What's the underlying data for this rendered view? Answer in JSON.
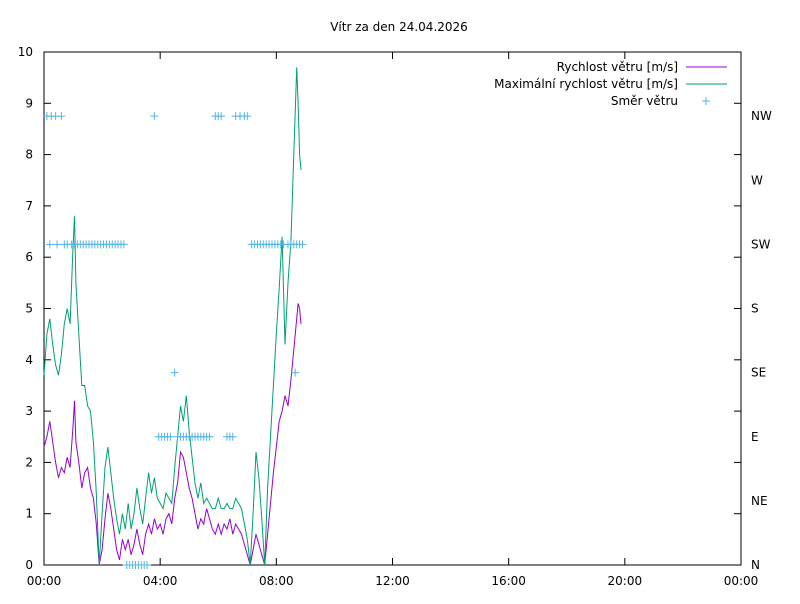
{
  "chart_data": {
    "type": "line",
    "title": "Vítr za den 24.04.2026",
    "x_ticks": [
      "00:00",
      "04:00",
      "08:00",
      "12:00",
      "16:00",
      "20:00",
      "00:00"
    ],
    "x_range_hours": [
      0,
      24
    ],
    "y_left": {
      "range": [
        0,
        10
      ],
      "ticks": [
        "0",
        "1",
        "2",
        "3",
        "4",
        "5",
        "6",
        "7",
        "8",
        "9",
        "10"
      ]
    },
    "y_right": {
      "labels": [
        "N",
        "NE",
        "E",
        "SE",
        "S",
        "SW",
        "W",
        "NW"
      ]
    },
    "grid": false,
    "legend_position": "top-right",
    "colors": {
      "speed": "#9400d3",
      "max_speed": "#009e73",
      "direction": "#56b4e9"
    },
    "series": [
      {
        "key": "speed",
        "name": "Rychlost větru [m/s]",
        "points": [
          [
            0.0,
            2.3
          ],
          [
            0.1,
            2.5
          ],
          [
            0.2,
            2.8
          ],
          [
            0.3,
            2.4
          ],
          [
            0.4,
            2.0
          ],
          [
            0.5,
            1.7
          ],
          [
            0.6,
            1.9
          ],
          [
            0.7,
            1.8
          ],
          [
            0.8,
            2.1
          ],
          [
            0.9,
            1.9
          ],
          [
            1.0,
            2.7
          ],
          [
            1.05,
            3.2
          ],
          [
            1.1,
            2.4
          ],
          [
            1.2,
            2.0
          ],
          [
            1.3,
            1.5
          ],
          [
            1.4,
            1.8
          ],
          [
            1.5,
            1.9
          ],
          [
            1.6,
            1.5
          ],
          [
            1.7,
            1.3
          ],
          [
            1.8,
            0.8
          ],
          [
            1.9,
            0.0
          ],
          [
            2.0,
            0.3
          ],
          [
            2.1,
            0.9
          ],
          [
            2.2,
            1.4
          ],
          [
            2.3,
            1.1
          ],
          [
            2.4,
            0.7
          ],
          [
            2.5,
            0.3
          ],
          [
            2.6,
            0.1
          ],
          [
            2.7,
            0.5
          ],
          [
            2.8,
            0.3
          ],
          [
            2.9,
            0.5
          ],
          [
            3.0,
            0.2
          ],
          [
            3.1,
            0.4
          ],
          [
            3.2,
            0.7
          ],
          [
            3.3,
            0.4
          ],
          [
            3.4,
            0.2
          ],
          [
            3.5,
            0.6
          ],
          [
            3.6,
            0.8
          ],
          [
            3.7,
            0.6
          ],
          [
            3.8,
            0.9
          ],
          [
            3.9,
            0.7
          ],
          [
            4.0,
            0.8
          ],
          [
            4.1,
            0.6
          ],
          [
            4.2,
            0.9
          ],
          [
            4.3,
            1.0
          ],
          [
            4.4,
            0.8
          ],
          [
            4.5,
            1.3
          ],
          [
            4.6,
            1.6
          ],
          [
            4.7,
            2.2
          ],
          [
            4.8,
            2.1
          ],
          [
            4.9,
            1.8
          ],
          [
            5.0,
            1.5
          ],
          [
            5.1,
            1.3
          ],
          [
            5.2,
            1.0
          ],
          [
            5.3,
            0.7
          ],
          [
            5.4,
            0.9
          ],
          [
            5.5,
            0.8
          ],
          [
            5.6,
            1.1
          ],
          [
            5.7,
            0.9
          ],
          [
            5.8,
            0.7
          ],
          [
            5.9,
            0.6
          ],
          [
            6.0,
            0.8
          ],
          [
            6.1,
            0.6
          ],
          [
            6.2,
            0.8
          ],
          [
            6.3,
            0.7
          ],
          [
            6.4,
            0.9
          ],
          [
            6.5,
            0.6
          ],
          [
            6.6,
            0.8
          ],
          [
            6.7,
            0.7
          ],
          [
            6.8,
            0.6
          ],
          [
            6.9,
            0.4
          ],
          [
            7.0,
            0.2
          ],
          [
            7.1,
            0.0
          ],
          [
            7.2,
            0.3
          ],
          [
            7.3,
            0.6
          ],
          [
            7.4,
            0.4
          ],
          [
            7.5,
            0.2
          ],
          [
            7.6,
            0.0
          ],
          [
            7.7,
            0.6
          ],
          [
            7.8,
            1.2
          ],
          [
            7.9,
            1.8
          ],
          [
            8.0,
            2.3
          ],
          [
            8.1,
            2.8
          ],
          [
            8.2,
            3.0
          ],
          [
            8.3,
            3.3
          ],
          [
            8.4,
            3.1
          ],
          [
            8.5,
            3.6
          ],
          [
            8.6,
            4.2
          ],
          [
            8.7,
            4.8
          ],
          [
            8.75,
            5.1
          ],
          [
            8.8,
            5.0
          ],
          [
            8.85,
            4.7
          ]
        ]
      },
      {
        "key": "max_speed",
        "name": "Maximální rychlost větru [m/s]",
        "points": [
          [
            0.0,
            3.7
          ],
          [
            0.1,
            4.5
          ],
          [
            0.2,
            4.8
          ],
          [
            0.3,
            4.3
          ],
          [
            0.4,
            3.9
          ],
          [
            0.5,
            3.7
          ],
          [
            0.6,
            4.1
          ],
          [
            0.7,
            4.7
          ],
          [
            0.8,
            5.0
          ],
          [
            0.9,
            4.7
          ],
          [
            1.0,
            6.2
          ],
          [
            1.05,
            6.8
          ],
          [
            1.1,
            5.5
          ],
          [
            1.2,
            4.5
          ],
          [
            1.3,
            3.5
          ],
          [
            1.4,
            3.5
          ],
          [
            1.5,
            3.1
          ],
          [
            1.6,
            3.0
          ],
          [
            1.7,
            2.4
          ],
          [
            1.8,
            1.4
          ],
          [
            1.9,
            0.0
          ],
          [
            2.0,
            1.0
          ],
          [
            2.1,
            1.9
          ],
          [
            2.2,
            2.3
          ],
          [
            2.3,
            1.8
          ],
          [
            2.4,
            1.3
          ],
          [
            2.5,
            0.9
          ],
          [
            2.6,
            0.6
          ],
          [
            2.7,
            1.0
          ],
          [
            2.8,
            0.7
          ],
          [
            2.9,
            1.2
          ],
          [
            3.0,
            0.7
          ],
          [
            3.1,
            1.0
          ],
          [
            3.2,
            1.5
          ],
          [
            3.3,
            1.1
          ],
          [
            3.4,
            0.8
          ],
          [
            3.5,
            1.3
          ],
          [
            3.6,
            1.8
          ],
          [
            3.7,
            1.4
          ],
          [
            3.8,
            1.7
          ],
          [
            3.9,
            1.3
          ],
          [
            4.0,
            1.2
          ],
          [
            4.1,
            1.1
          ],
          [
            4.2,
            1.4
          ],
          [
            4.3,
            1.3
          ],
          [
            4.4,
            1.2
          ],
          [
            4.5,
            1.9
          ],
          [
            4.6,
            2.5
          ],
          [
            4.7,
            3.1
          ],
          [
            4.8,
            2.8
          ],
          [
            4.9,
            3.3
          ],
          [
            5.0,
            2.6
          ],
          [
            5.1,
            2.1
          ],
          [
            5.2,
            1.6
          ],
          [
            5.3,
            1.3
          ],
          [
            5.4,
            1.6
          ],
          [
            5.5,
            1.2
          ],
          [
            5.6,
            1.3
          ],
          [
            5.7,
            1.2
          ],
          [
            5.8,
            1.1
          ],
          [
            5.9,
            1.1
          ],
          [
            6.0,
            1.3
          ],
          [
            6.1,
            1.1
          ],
          [
            6.2,
            1.1
          ],
          [
            6.3,
            1.2
          ],
          [
            6.4,
            1.1
          ],
          [
            6.5,
            1.1
          ],
          [
            6.6,
            1.3
          ],
          [
            6.7,
            1.2
          ],
          [
            6.8,
            1.1
          ],
          [
            6.9,
            0.8
          ],
          [
            7.0,
            0.5
          ],
          [
            7.1,
            0.0
          ],
          [
            7.2,
            1.0
          ],
          [
            7.3,
            2.2
          ],
          [
            7.4,
            1.7
          ],
          [
            7.5,
            0.9
          ],
          [
            7.6,
            0.0
          ],
          [
            7.7,
            1.5
          ],
          [
            7.8,
            2.5
          ],
          [
            7.9,
            3.5
          ],
          [
            8.0,
            4.5
          ],
          [
            8.1,
            5.4
          ],
          [
            8.2,
            6.4
          ],
          [
            8.3,
            4.3
          ],
          [
            8.4,
            5.5
          ],
          [
            8.5,
            6.3
          ],
          [
            8.6,
            8.0
          ],
          [
            8.7,
            9.7
          ],
          [
            8.75,
            9.0
          ],
          [
            8.8,
            8.0
          ],
          [
            8.85,
            7.7
          ]
        ]
      },
      {
        "key": "direction",
        "name": "Směr větru",
        "points": [
          [
            0.1,
            "NW"
          ],
          [
            0.25,
            "NW"
          ],
          [
            0.4,
            "NW"
          ],
          [
            0.6,
            "NW"
          ],
          [
            0.2,
            "SW"
          ],
          [
            0.45,
            "SW"
          ],
          [
            0.7,
            "SW"
          ],
          [
            0.8,
            "SW"
          ],
          [
            0.95,
            "SW"
          ],
          [
            1.05,
            "SW"
          ],
          [
            1.15,
            "SW"
          ],
          [
            1.25,
            "SW"
          ],
          [
            1.35,
            "SW"
          ],
          [
            1.45,
            "SW"
          ],
          [
            1.55,
            "SW"
          ],
          [
            1.65,
            "SW"
          ],
          [
            1.75,
            "SW"
          ],
          [
            1.85,
            "SW"
          ],
          [
            1.95,
            "SW"
          ],
          [
            2.05,
            "SW"
          ],
          [
            2.15,
            "SW"
          ],
          [
            2.25,
            "SW"
          ],
          [
            2.35,
            "SW"
          ],
          [
            2.45,
            "SW"
          ],
          [
            2.55,
            "SW"
          ],
          [
            2.65,
            "SW"
          ],
          [
            2.75,
            "SW"
          ],
          [
            2.85,
            "N"
          ],
          [
            2.95,
            "N"
          ],
          [
            3.05,
            "N"
          ],
          [
            3.15,
            "N"
          ],
          [
            3.25,
            "N"
          ],
          [
            3.35,
            "N"
          ],
          [
            3.45,
            "N"
          ],
          [
            3.55,
            "N"
          ],
          [
            3.8,
            "NW"
          ],
          [
            3.95,
            "E"
          ],
          [
            4.05,
            "E"
          ],
          [
            4.15,
            "E"
          ],
          [
            4.25,
            "E"
          ],
          [
            4.35,
            "E"
          ],
          [
            4.5,
            "SE"
          ],
          [
            4.6,
            "E"
          ],
          [
            4.7,
            "E"
          ],
          [
            4.8,
            "E"
          ],
          [
            4.9,
            "E"
          ],
          [
            5.0,
            "E"
          ],
          [
            5.1,
            "E"
          ],
          [
            5.2,
            "E"
          ],
          [
            5.3,
            "E"
          ],
          [
            5.4,
            "E"
          ],
          [
            5.5,
            "E"
          ],
          [
            5.6,
            "E"
          ],
          [
            5.7,
            "E"
          ],
          [
            5.9,
            "NW"
          ],
          [
            6.0,
            "NW"
          ],
          [
            6.1,
            "NW"
          ],
          [
            6.3,
            "E"
          ],
          [
            6.4,
            "E"
          ],
          [
            6.5,
            "E"
          ],
          [
            6.6,
            "NW"
          ],
          [
            6.75,
            "NW"
          ],
          [
            6.9,
            "NW"
          ],
          [
            7.0,
            "NW"
          ],
          [
            7.15,
            "SW"
          ],
          [
            7.25,
            "SW"
          ],
          [
            7.35,
            "SW"
          ],
          [
            7.45,
            "SW"
          ],
          [
            7.55,
            "SW"
          ],
          [
            7.65,
            "SW"
          ],
          [
            7.75,
            "SW"
          ],
          [
            7.85,
            "SW"
          ],
          [
            7.95,
            "SW"
          ],
          [
            8.05,
            "SW"
          ],
          [
            8.15,
            "SW"
          ],
          [
            8.25,
            "SW"
          ],
          [
            8.4,
            "SW"
          ],
          [
            8.5,
            "SW"
          ],
          [
            8.6,
            "SW"
          ],
          [
            8.7,
            "SW"
          ],
          [
            8.8,
            "SW"
          ],
          [
            8.9,
            "SW"
          ],
          [
            8.65,
            "SE"
          ]
        ]
      }
    ]
  }
}
